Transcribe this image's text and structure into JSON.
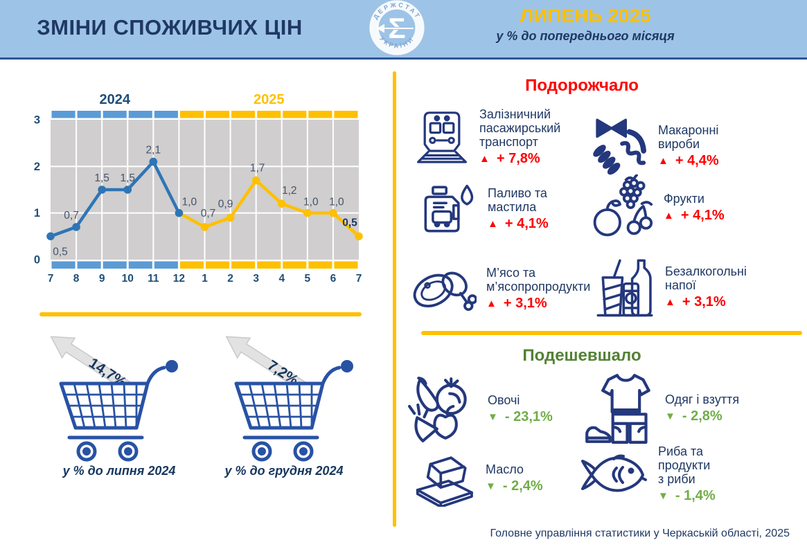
{
  "header": {
    "title": "ЗМІНИ СПОЖИВЧИХ ЦІН",
    "period": "ЛИПЕНЬ 2025",
    "subtitle": "у % до попереднього місяця",
    "logo": {
      "arc_top": "ДЕРЖСТАТ",
      "arc_bottom": "УКРАЇНИ",
      "sigma": "Σ"
    }
  },
  "chart_data": {
    "type": "line",
    "title": "",
    "x_labels": [
      "7",
      "8",
      "9",
      "10",
      "11",
      "12",
      "1",
      "2",
      "3",
      "4",
      "5",
      "6",
      "7"
    ],
    "values": [
      0.5,
      0.7,
      1.5,
      1.5,
      2.1,
      1.0,
      0.7,
      0.9,
      1.7,
      1.2,
      1.0,
      1.0,
      0.5
    ],
    "point_labels": [
      "0,5",
      "0,7",
      "1,5",
      "1,5",
      "2,1",
      "1,0",
      "0,7",
      "0,9",
      "1,7",
      "1,2",
      "1,0",
      "1,0",
      "0,5"
    ],
    "ylim": [
      0,
      3
    ],
    "yticks": [
      0,
      1,
      2,
      3
    ],
    "grid": true,
    "split_index": 5,
    "year_left": "2024",
    "year_right": "2025",
    "colors": {
      "band_2024": "#5B9BD5",
      "band_2025": "#FFC000",
      "line_2024": "#2E75B6",
      "line_2025": "#FFC000",
      "plot_bg": "#D0CECE",
      "point_label": "#44546A",
      "axis_label": "#1F4E79",
      "year_left_color": "#1F4E79",
      "year_right_color": "#FFC000",
      "last_label_color": "#1F3864"
    }
  },
  "carts": [
    {
      "value": "14,7%",
      "caption": "у % до липня 2024"
    },
    {
      "value": "7,2%",
      "caption": "у % до грудня 2024"
    }
  ],
  "sections": {
    "up": {
      "title": "Подорожчало",
      "accent": "#FF0000",
      "items": [
        {
          "icon": "train-icon",
          "label": "Залізничний\nпасажирський\nтранспорт",
          "delta": "+ 7,8%"
        },
        {
          "icon": "pasta-icon",
          "label": "Макаронні\nвироби",
          "delta": "+ 4,4%"
        },
        {
          "icon": "fuel-icon",
          "label": "Паливо та\nмастила",
          "delta": "+ 4,1%"
        },
        {
          "icon": "fruits-icon",
          "label": "Фрукти",
          "delta": "+ 4,1%"
        },
        {
          "icon": "meat-icon",
          "label": "М’ясо та\nм’ясопропродукти",
          "delta": "+ 3,1%"
        },
        {
          "icon": "drinks-icon",
          "label": "Безалкогольні\nнапої",
          "delta": "+ 3,1%"
        }
      ]
    },
    "down": {
      "title": "Подешевшало",
      "accent": "#70AD47",
      "items": [
        {
          "icon": "vegetables-icon",
          "label": "Овочі",
          "delta": "- 23,1%"
        },
        {
          "icon": "clothes-icon",
          "label": "Одяг і взуття",
          "delta": "- 2,8%"
        },
        {
          "icon": "butter-icon",
          "label": "Масло",
          "delta": "- 2,4%"
        },
        {
          "icon": "fish-icon",
          "label": "Риба та\nпродукти\nз риби",
          "delta": "- 1,4%"
        }
      ]
    }
  },
  "glyphs": {
    "up_triangle": "▲",
    "down_triangle": "▼"
  },
  "footer": {
    "source": "Головне управління статистики у Черкаській області, 2025"
  }
}
